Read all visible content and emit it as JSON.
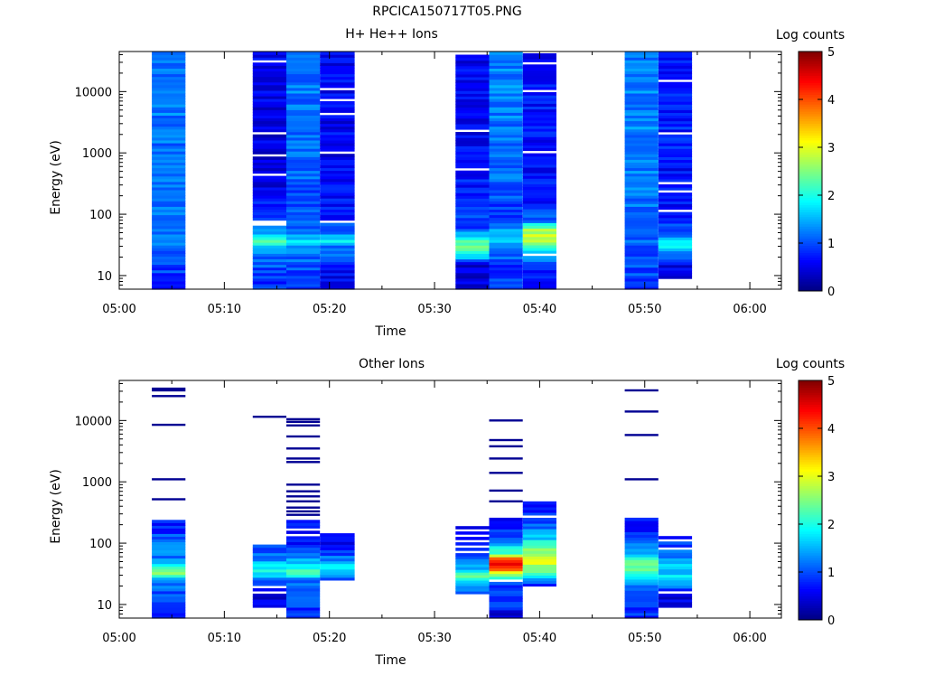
{
  "page_title": "RPCICA150717T05.PNG",
  "colorbar": {
    "label": "Log counts",
    "ticks": [
      "0",
      "1",
      "2",
      "3",
      "4",
      "5"
    ],
    "colormap": [
      "#00007f",
      "#0000ff",
      "#007fff",
      "#00ffff",
      "#7fff7f",
      "#ffff00",
      "#ff7f00",
      "#ff0000",
      "#7f0000"
    ]
  },
  "chart_data": [
    {
      "type": "heatmap",
      "title": "H+ He++ Ions",
      "xlabel": "Time",
      "ylabel": "Energy (eV)",
      "y_scale": "log",
      "ylim": [
        6,
        45000
      ],
      "xlim_minutes": [
        0,
        63
      ],
      "x_ticks": [
        "05:00",
        "05:10",
        "05:20",
        "05:30",
        "05:40",
        "05:50",
        "06:00"
      ],
      "y_ticks": [
        "10",
        "100",
        "1000",
        "10000"
      ],
      "zlim": [
        0,
        5
      ],
      "columns": [
        {
          "t_start": "05:03.1",
          "t_end": "05:06.3",
          "e_min": 6,
          "e_max": 45000,
          "profile": [
            [
              6,
              0.9
            ],
            [
              15,
              0.9
            ],
            [
              30,
              1.1
            ],
            [
              60,
              1.2
            ],
            [
              150,
              1.1
            ],
            [
              500,
              1.25
            ],
            [
              2000,
              1.2
            ],
            [
              10000,
              1.3
            ],
            [
              45000,
              1.2
            ]
          ],
          "gaps": []
        },
        {
          "t_start": "05:12.7",
          "t_end": "05:15.9",
          "e_min": 6,
          "e_max": 45000,
          "profile": [
            [
              6,
              0.8
            ],
            [
              15,
              1.0
            ],
            [
              28,
              1.5
            ],
            [
              35,
              2.4
            ],
            [
              42,
              2.0
            ],
            [
              60,
              1.1
            ],
            [
              200,
              0.55
            ],
            [
              2000,
              0.5
            ],
            [
              45000,
              0.5
            ]
          ],
          "gaps": [
            70,
            80,
            450,
            900,
            2200,
            30000
          ]
        },
        {
          "t_start": "05:15.9",
          "t_end": "05:19.1",
          "e_min": 6,
          "e_max": 45000,
          "profile": [
            [
              6,
              1.0
            ],
            [
              15,
              1.0
            ],
            [
              28,
              1.2
            ],
            [
              35,
              1.8
            ],
            [
              42,
              1.5
            ],
            [
              60,
              1.0
            ],
            [
              200,
              1.05
            ],
            [
              2000,
              1.15
            ],
            [
              10000,
              1.2
            ],
            [
              45000,
              1.2
            ]
          ],
          "gaps": []
        },
        {
          "t_start": "05:19.1",
          "t_end": "05:22.4",
          "e_min": 6,
          "e_max": 45000,
          "profile": [
            [
              6,
              0.4
            ],
            [
              15,
              0.8
            ],
            [
              30,
              1.2
            ],
            [
              38,
              1.8
            ],
            [
              50,
              1.3
            ],
            [
              80,
              0.7
            ],
            [
              300,
              0.6
            ],
            [
              2000,
              0.6
            ],
            [
              45000,
              0.55
            ]
          ],
          "gaps": [
            75,
            1000,
            4500,
            7000,
            11000
          ]
        },
        {
          "t_start": "05:32.0",
          "t_end": "05:35.2",
          "e_min": 6,
          "e_max": 40000,
          "profile": [
            [
              6,
              0.4
            ],
            [
              15,
              0.5
            ],
            [
              22,
              1.9
            ],
            [
              30,
              2.5
            ],
            [
              45,
              1.7
            ],
            [
              60,
              1.0
            ],
            [
              200,
              0.75
            ],
            [
              2000,
              0.6
            ],
            [
              40000,
              0.6
            ]
          ],
          "gaps": [
            550,
            2200
          ]
        },
        {
          "t_start": "05:35.2",
          "t_end": "05:38.4",
          "e_min": 6,
          "e_max": 45000,
          "profile": [
            [
              6,
              0.9
            ],
            [
              15,
              0.9
            ],
            [
              30,
              1.2
            ],
            [
              50,
              1.8
            ],
            [
              60,
              1.4
            ],
            [
              100,
              0.9
            ],
            [
              400,
              1.1
            ],
            [
              2000,
              1.2
            ],
            [
              10000,
              1.25
            ],
            [
              45000,
              1.25
            ]
          ],
          "gaps": []
        },
        {
          "t_start": "05:38.4",
          "t_end": "05:41.6",
          "e_min": 6,
          "e_max": 42000,
          "profile": [
            [
              6,
              0.4
            ],
            [
              14,
              0.8
            ],
            [
              30,
              2.1
            ],
            [
              40,
              2.9
            ],
            [
              55,
              2.7
            ],
            [
              80,
              1.2
            ],
            [
              200,
              0.65
            ],
            [
              2000,
              0.7
            ],
            [
              42000,
              0.65
            ]
          ],
          "gaps": [
            22,
            1000,
            10000,
            30000
          ]
        },
        {
          "t_start": "05:48.1",
          "t_end": "05:51.3",
          "e_min": 6,
          "e_max": 45000,
          "profile": [
            [
              6,
              0.9
            ],
            [
              15,
              1.0
            ],
            [
              30,
              1.1
            ],
            [
              60,
              1.2
            ],
            [
              150,
              1.15
            ],
            [
              500,
              1.2
            ],
            [
              2000,
              1.25
            ],
            [
              10000,
              1.3
            ],
            [
              45000,
              1.25
            ]
          ],
          "gaps": []
        },
        {
          "t_start": "05:51.3",
          "t_end": "05:54.5",
          "e_min": 9,
          "e_max": 45000,
          "profile": [
            [
              9,
              0.4
            ],
            [
              15,
              0.6
            ],
            [
              25,
              1.3
            ],
            [
              35,
              2.0
            ],
            [
              50,
              1.1
            ],
            [
              100,
              0.7
            ],
            [
              500,
              0.65
            ],
            [
              2000,
              0.75
            ],
            [
              45000,
              0.7
            ]
          ],
          "gaps": [
            110,
            230,
            330,
            2000,
            15000
          ]
        }
      ]
    },
    {
      "type": "heatmap",
      "title": "Other Ions",
      "xlabel": "Time",
      "ylabel": "Energy (eV)",
      "y_scale": "log",
      "ylim": [
        6,
        45000
      ],
      "xlim_minutes": [
        0,
        63
      ],
      "x_ticks": [
        "05:00",
        "05:10",
        "05:20",
        "05:30",
        "05:40",
        "05:50",
        "06:00"
      ],
      "y_ticks": [
        "10",
        "100",
        "1000",
        "10000"
      ],
      "zlim": [
        0,
        5
      ],
      "columns": [
        {
          "t_start": "05:03.1",
          "t_end": "05:06.3",
          "e_min": 6,
          "e_max": 240,
          "profile": [
            [
              6,
              0.8
            ],
            [
              14,
              0.9
            ],
            [
              25,
              1.4
            ],
            [
              33,
              2.5
            ],
            [
              42,
              2.2
            ],
            [
              55,
              1.3
            ],
            [
              100,
              1.1
            ],
            [
              240,
              0.7
            ]
          ],
          "gaps": [],
          "lines": [
            520,
            1100,
            8500,
            25000,
            31000,
            33000
          ]
        },
        {
          "t_start": "05:12.7",
          "t_end": "05:15.9",
          "e_min": 9,
          "e_max": 95,
          "profile": [
            [
              9,
              0.4
            ],
            [
              18,
              0.5
            ],
            [
              25,
              1.2
            ],
            [
              35,
              2.0
            ],
            [
              45,
              1.6
            ],
            [
              65,
              1.2
            ],
            [
              95,
              0.9
            ]
          ],
          "gaps": [
            16,
            20
          ],
          "lines": [
            11500
          ]
        },
        {
          "t_start": "05:15.9",
          "t_end": "05:19.1",
          "e_min": 6,
          "e_max": 240,
          "profile": [
            [
              6,
              0.9
            ],
            [
              14,
              0.9
            ],
            [
              25,
              1.2
            ],
            [
              33,
              2.3
            ],
            [
              42,
              1.9
            ],
            [
              60,
              1.3
            ],
            [
              100,
              0.8
            ],
            [
              240,
              0.6
            ]
          ],
          "gaps": [
            130,
            175
          ],
          "lines": [
            290,
            330,
            380,
            480,
            580,
            700,
            900,
            2100,
            2400,
            3500,
            5500,
            8300,
            9500,
            10500
          ]
        },
        {
          "t_start": "05:19.1",
          "t_end": "05:22.4",
          "e_min": 25,
          "e_max": 145,
          "profile": [
            [
              25,
              0.6
            ],
            [
              35,
              1.8
            ],
            [
              45,
              1.6
            ],
            [
              60,
              1.1
            ],
            [
              90,
              0.7
            ],
            [
              145,
              0.6
            ]
          ],
          "gaps": [],
          "lines": []
        },
        {
          "t_start": "05:32.0",
          "t_end": "05:35.2",
          "e_min": 15,
          "e_max": 190,
          "profile": [
            [
              15,
              0.9
            ],
            [
              22,
              1.5
            ],
            [
              30,
              2.3
            ],
            [
              40,
              1.6
            ],
            [
              60,
              0.9
            ],
            [
              100,
              0.6
            ],
            [
              190,
              0.6
            ]
          ],
          "gaps": [
            70,
            90,
            110,
            140,
            165
          ],
          "lines": []
        },
        {
          "t_start": "05:35.2",
          "t_end": "05:38.4",
          "e_min": 6,
          "e_max": 260,
          "profile": [
            [
              6,
              0.4
            ],
            [
              11,
              0.9
            ],
            [
              20,
              1.0
            ],
            [
              28,
              2.0
            ],
            [
              35,
              3.4
            ],
            [
              40,
              4.1
            ],
            [
              55,
              4.4
            ],
            [
              70,
              2.2
            ],
            [
              100,
              1.4
            ],
            [
              180,
              0.7
            ],
            [
              260,
              0.6
            ]
          ],
          "gaps": [
            24
          ],
          "lines": [
            480,
            720,
            1400,
            2400,
            3800,
            4800,
            10000
          ]
        },
        {
          "t_start": "05:38.4",
          "t_end": "05:41.6",
          "e_min": 20,
          "e_max": 480,
          "profile": [
            [
              20,
              0.5
            ],
            [
              28,
              1.9
            ],
            [
              40,
              2.7
            ],
            [
              60,
              3.0
            ],
            [
              90,
              2.4
            ],
            [
              130,
              1.5
            ],
            [
              220,
              0.9
            ],
            [
              330,
              0.7
            ],
            [
              480,
              0.6
            ]
          ],
          "gaps": [
            260
          ],
          "lines": []
        },
        {
          "t_start": "05:48.1",
          "t_end": "05:51.3",
          "e_min": 6,
          "e_max": 260,
          "profile": [
            [
              6,
              0.8
            ],
            [
              15,
              0.9
            ],
            [
              25,
              1.5
            ],
            [
              35,
              2.4
            ],
            [
              50,
              2.4
            ],
            [
              65,
              1.6
            ],
            [
              100,
              1.1
            ],
            [
              180,
              0.7
            ],
            [
              260,
              0.6
            ]
          ],
          "gaps": [],
          "lines": [
            1100,
            5800,
            14000,
            31000
          ]
        },
        {
          "t_start": "05:51.3",
          "t_end": "05:54.5",
          "e_min": 9,
          "e_max": 145,
          "profile": [
            [
              9,
              0.5
            ],
            [
              14,
              0.5
            ],
            [
              20,
              1.2
            ],
            [
              30,
              1.7
            ],
            [
              45,
              1.6
            ],
            [
              70,
              1.1
            ],
            [
              145,
              0.7
            ]
          ],
          "gaps": [
            16,
            80,
            110,
            135
          ],
          "lines": []
        }
      ]
    }
  ]
}
